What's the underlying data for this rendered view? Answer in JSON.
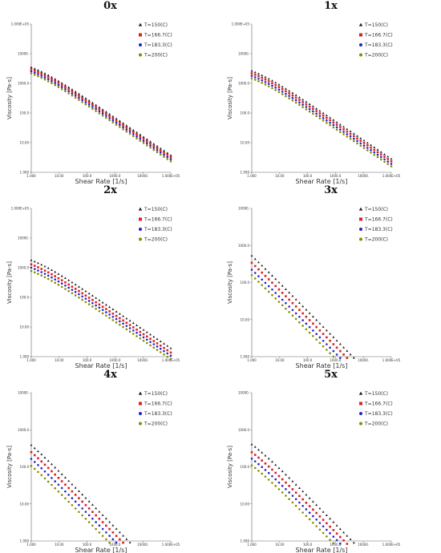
{
  "figure": {
    "legend_entries": [
      {
        "label": "T=150(C)",
        "color": "#1a1a1a",
        "marker": "triangle"
      },
      {
        "label": "T=166.7(C)",
        "color": "#e0201f",
        "marker": "square"
      },
      {
        "label": "T=183.3(C)",
        "color": "#2222cc",
        "marker": "circle"
      },
      {
        "label": "T=200(C)",
        "color": "#8a8a00",
        "marker": "circle"
      }
    ],
    "xlabel": "Shear Rate [1/s]",
    "ylabel": "Viscosity [Pa-s]"
  },
  "chart_data": [
    {
      "type": "scatter",
      "title": "0x",
      "xlabel": "Shear Rate [1/s]",
      "ylabel": "Viscosity [Pa-s]",
      "xscale": "log",
      "yscale": "log",
      "xlim": [
        1,
        100000
      ],
      "ylim": [
        1,
        1000000
      ],
      "xticks": [
        "1.000",
        "10.00",
        "100.0",
        "1000.0",
        "10000.",
        "1.000E+05"
      ],
      "yticks": [
        "1.000",
        "10.00",
        "100.0",
        "1000.0",
        "10000.",
        "1.000E+05"
      ],
      "series": [
        {
          "name": "T=150(C)",
          "eta0": 42000,
          "tau": 3.6e-05,
          "n": 0.24
        },
        {
          "name": "T=166.7(C)",
          "eta0": 35000,
          "tau": 4.3e-05,
          "n": 0.24
        },
        {
          "name": "T=183.3(C)",
          "eta0": 29000,
          "tau": 5.2e-05,
          "n": 0.24
        },
        {
          "name": "T=200(C)",
          "eta0": 24000,
          "tau": 6.3e-05,
          "n": 0.24
        }
      ]
    },
    {
      "type": "scatter",
      "title": "1x",
      "xlabel": "Shear Rate [1/s]",
      "ylabel": "Viscosity [Pa-s]",
      "xscale": "log",
      "yscale": "log",
      "xlim": [
        1,
        100000
      ],
      "ylim": [
        1,
        1000000
      ],
      "xticks": [
        "1.000",
        "10.00",
        "100.0",
        "1000.0",
        "10000.",
        "1.000E+05"
      ],
      "yticks": [
        "1.000",
        "10.00",
        "100.0",
        "1000.0",
        "10000.",
        "1.000E+05"
      ],
      "series": [
        {
          "name": "T=150(C)",
          "eta0": 30000,
          "tau": 5e-05,
          "n": 0.24
        },
        {
          "name": "T=166.7(C)",
          "eta0": 24000,
          "tau": 6.3e-05,
          "n": 0.24
        },
        {
          "name": "T=183.3(C)",
          "eta0": 19000,
          "tau": 8e-05,
          "n": 0.24
        },
        {
          "name": "T=200(C)",
          "eta0": 15000,
          "tau": 0.0001,
          "n": 0.24
        }
      ]
    },
    {
      "type": "scatter",
      "title": "2x",
      "xlabel": "Shear Rate [1/s]",
      "ylabel": "Viscosity [Pa-s]",
      "xscale": "log",
      "yscale": "log",
      "xlim": [
        1,
        100000
      ],
      "ylim": [
        1,
        1000000
      ],
      "xticks": [
        "1.000",
        "10.00",
        "100.0",
        "1000.0",
        "10000.",
        "1.000E+05"
      ],
      "yticks": [
        "1.000",
        "10.00",
        "100.0",
        "1000.0",
        "10000.",
        "1.000E+05"
      ],
      "series": [
        {
          "name": "T=150(C)",
          "eta0": 19000,
          "tau": 8e-05,
          "n": 0.24
        },
        {
          "name": "T=166.7(C)",
          "eta0": 13000,
          "tau": 0.00012,
          "n": 0.24
        },
        {
          "name": "T=183.3(C)",
          "eta0": 9500,
          "tau": 0.00016,
          "n": 0.24
        },
        {
          "name": "T=200(C)",
          "eta0": 7000,
          "tau": 0.00022,
          "n": 0.24
        }
      ]
    },
    {
      "type": "scatter",
      "title": "3x",
      "xlabel": "Shear Rate [1/s]",
      "ylabel": "Viscosity [Pa-s]",
      "xscale": "log",
      "yscale": "log",
      "xlim": [
        1,
        100000
      ],
      "ylim": [
        1,
        10000
      ],
      "xticks": [
        "1.000",
        "10.00",
        "100.0",
        "1000.0",
        "10000.",
        "1.000E+05"
      ],
      "yticks": [
        "1.000",
        "10.00",
        "100.0",
        "1000.0",
        "10000."
      ],
      "series": [
        {
          "name": "T=150(C)",
          "eta0": 8500,
          "tau": 0.0042,
          "n": 0.24
        },
        {
          "name": "T=166.7(C)",
          "eta0": 5500,
          "tau": 0.0065,
          "n": 0.24
        },
        {
          "name": "T=183.3(C)",
          "eta0": 3600,
          "tau": 0.01,
          "n": 0.24
        },
        {
          "name": "T=200(C)",
          "eta0": 2500,
          "tau": 0.014,
          "n": 0.24
        }
      ]
    },
    {
      "type": "scatter",
      "title": "4x",
      "xlabel": "Shear Rate [1/s]",
      "ylabel": "Viscosity [Pa-s]",
      "xscale": "log",
      "yscale": "log",
      "xlim": [
        1,
        100000
      ],
      "ylim": [
        1,
        10000
      ],
      "xticks": [
        "1.000",
        "10.00",
        "100.0",
        "1000.0",
        "10000.",
        "1.000E+05"
      ],
      "yticks": [
        "1.000",
        "10.00",
        "100.0",
        "1000.0",
        "10000."
      ],
      "series": [
        {
          "name": "T=150(C)",
          "eta0": 3100,
          "tau": 0.0042,
          "n": 0.24
        },
        {
          "name": "T=166.7(C)",
          "eta0": 2000,
          "tau": 0.0065,
          "n": 0.24
        },
        {
          "name": "T=183.3(C)",
          "eta0": 1350,
          "tau": 0.01,
          "n": 0.24
        },
        {
          "name": "T=200(C)",
          "eta0": 900,
          "tau": 0.0155,
          "n": 0.24
        }
      ]
    },
    {
      "type": "scatter",
      "title": "5x",
      "xlabel": "Shear Rate [1/s]",
      "ylabel": "Viscosity [Pa-s]",
      "xscale": "log",
      "yscale": "log",
      "xlim": [
        1,
        100000
      ],
      "ylim": [
        1,
        10000
      ],
      "xticks": [
        "1.000",
        "10.00",
        "100.0",
        "1000.0",
        "10000.",
        "1.000E+05"
      ],
      "yticks": [
        "1.000",
        "10.00",
        "100.0",
        "1000.0",
        "10000."
      ],
      "series": [
        {
          "name": "T=150(C)",
          "eta0": 1600,
          "tau": 0.0026,
          "n": 0.24
        },
        {
          "name": "T=166.7(C)",
          "eta0": 1000,
          "tau": 0.0043,
          "n": 0.24
        },
        {
          "name": "T=183.3(C)",
          "eta0": 680,
          "tau": 0.0065,
          "n": 0.24
        },
        {
          "name": "T=200(C)",
          "eta0": 450,
          "tau": 0.0098,
          "n": 0.24
        }
      ]
    }
  ]
}
